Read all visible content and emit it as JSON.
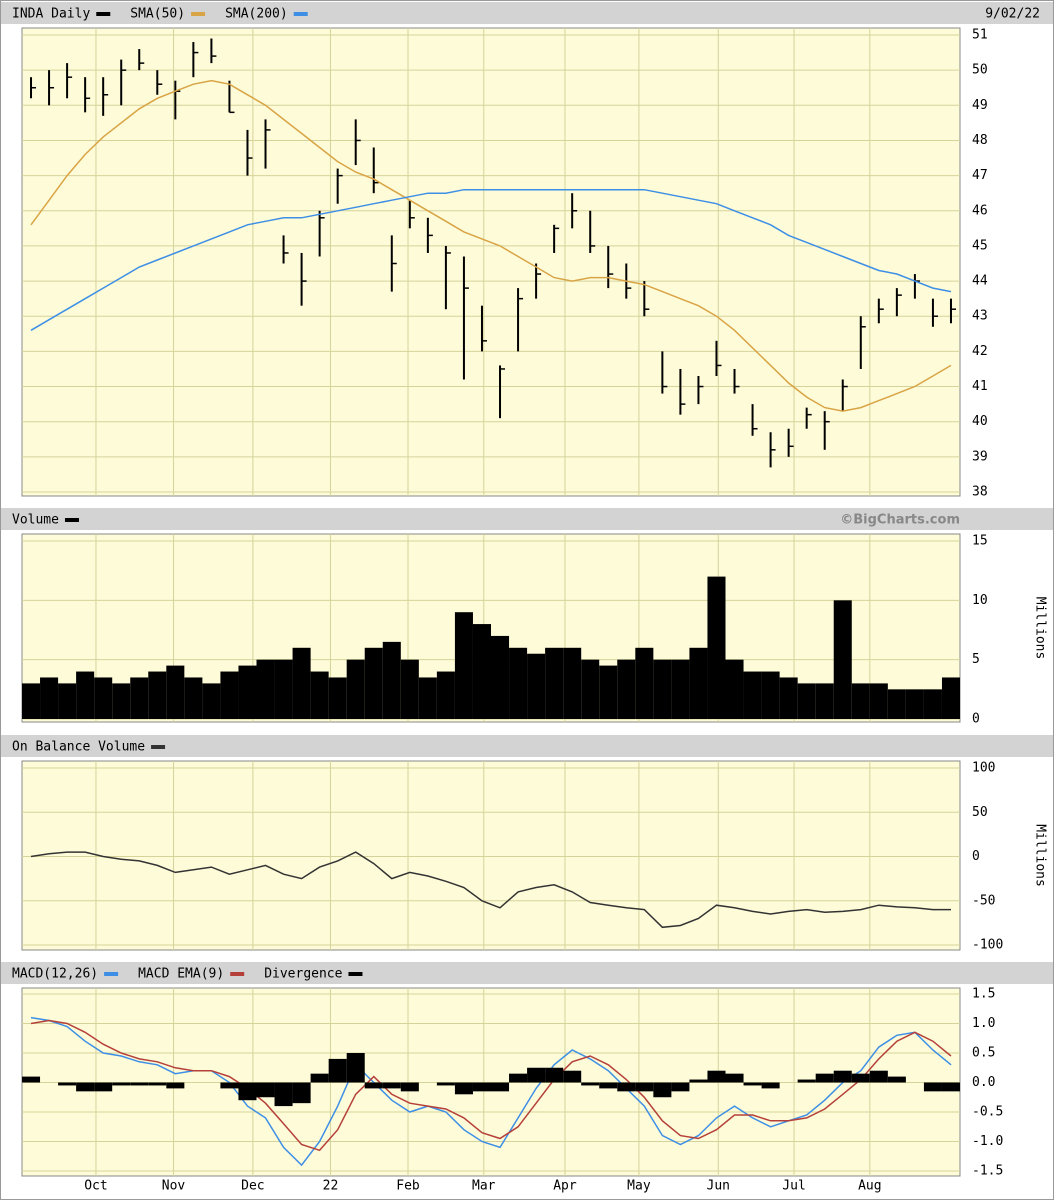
{
  "chart_data": [
    {
      "type": "ohlc",
      "date_label": "9/02/22",
      "ylim": [
        38,
        51
      ],
      "yticks": [
        38,
        39,
        40,
        41,
        42,
        43,
        44,
        45,
        46,
        47,
        48,
        49,
        50,
        51
      ],
      "grid": true,
      "series": [
        {
          "name": "INDA Daily",
          "color": "#000000",
          "high": [
            49.8,
            50,
            50.2,
            49.8,
            49.8,
            50.3,
            50.6,
            50,
            49.7,
            50.8,
            50.9,
            49.7,
            48.3,
            48.6,
            45.3,
            44.8,
            46,
            47.2,
            48.6,
            47.8,
            45.3,
            46.3,
            45.8,
            45,
            44.7,
            43.3,
            41.6,
            43.8,
            44.5,
            45.6,
            46.5,
            46,
            45,
            44.5,
            44,
            42,
            41.5,
            41.3,
            42.3,
            41.5,
            40.5,
            39.7,
            39.8,
            40.4,
            40.3,
            41.2,
            43,
            43.5,
            43.8,
            44.2,
            43.5,
            43.5
          ],
          "low": [
            49.2,
            49,
            49.2,
            48.8,
            48.7,
            49,
            50,
            49.3,
            48.6,
            49.8,
            50.2,
            48.8,
            47,
            47.2,
            44.5,
            43.3,
            44.7,
            46.2,
            47.3,
            46.5,
            43.7,
            45.5,
            44.8,
            43.2,
            41.2,
            42,
            40.1,
            42,
            43.5,
            44.8,
            45.5,
            44.8,
            43.8,
            43.5,
            43,
            40.8,
            40.2,
            40.5,
            41.3,
            40.8,
            39.6,
            38.7,
            39,
            39.8,
            39.2,
            40.3,
            41.5,
            42.8,
            43,
            43.5,
            42.7,
            42.8
          ],
          "close": [
            49.5,
            49.5,
            49.8,
            49.2,
            49.3,
            50,
            50.2,
            49.6,
            49.4,
            50.5,
            50.4,
            48.8,
            47.5,
            48.3,
            44.8,
            44,
            45.8,
            47,
            48,
            46.8,
            44.5,
            45.8,
            45.3,
            44.8,
            43.8,
            42.3,
            41.5,
            43.5,
            44.2,
            45.5,
            46,
            45,
            44.2,
            43.8,
            43.2,
            41,
            40.5,
            41,
            41.6,
            41,
            39.8,
            39.2,
            39.3,
            40.2,
            40,
            41,
            42.7,
            43.2,
            43.6,
            44,
            43,
            43.2
          ]
        },
        {
          "name": "SMA(50)",
          "color": "#d9a445",
          "values": [
            45.6,
            46.3,
            47,
            47.6,
            48.1,
            48.5,
            48.9,
            49.2,
            49.4,
            49.6,
            49.7,
            49.6,
            49.3,
            49,
            48.6,
            48.2,
            47.8,
            47.4,
            47.1,
            46.9,
            46.6,
            46.3,
            46,
            45.7,
            45.4,
            45.2,
            45,
            44.7,
            44.4,
            44.1,
            44,
            44.1,
            44.1,
            44,
            43.9,
            43.7,
            43.5,
            43.3,
            43,
            42.6,
            42.1,
            41.6,
            41.1,
            40.7,
            40.4,
            40.3,
            40.4,
            40.6,
            40.8,
            41,
            41.3,
            41.6
          ]
        },
        {
          "name": "SMA(200)",
          "color": "#3d8fe6",
          "values": [
            42.6,
            42.9,
            43.2,
            43.5,
            43.8,
            44.1,
            44.4,
            44.6,
            44.8,
            45,
            45.2,
            45.4,
            45.6,
            45.7,
            45.8,
            45.8,
            45.9,
            46,
            46.1,
            46.2,
            46.3,
            46.4,
            46.5,
            46.5,
            46.6,
            46.6,
            46.6,
            46.6,
            46.6,
            46.6,
            46.6,
            46.6,
            46.6,
            46.6,
            46.6,
            46.5,
            46.4,
            46.3,
            46.2,
            46,
            45.8,
            45.6,
            45.3,
            45.1,
            44.9,
            44.7,
            44.5,
            44.3,
            44.2,
            44,
            43.8,
            43.7
          ]
        }
      ]
    },
    {
      "type": "bar",
      "credit": "©BigCharts.com",
      "y_label": "Millions",
      "ylim": [
        0,
        15
      ],
      "yticks": [
        0,
        5,
        10,
        15
      ],
      "grid": true,
      "series": [
        {
          "name": "Volume",
          "color": "#000000",
          "values": [
            3,
            3.5,
            3,
            4,
            3.5,
            3,
            3.5,
            4,
            4.5,
            3.5,
            3,
            4,
            4.5,
            5,
            5,
            6,
            4,
            3.5,
            5,
            6,
            6.5,
            5,
            3.5,
            4,
            9,
            8,
            7,
            6,
            5.5,
            6,
            6,
            5,
            4.5,
            5,
            6,
            5,
            5,
            6,
            12,
            5,
            4,
            4,
            3.5,
            3,
            3,
            10,
            3,
            3,
            2.5,
            2.5,
            2.5,
            3.5
          ]
        }
      ]
    },
    {
      "type": "line",
      "y_label": "Millions",
      "ylim": [
        -100,
        100
      ],
      "yticks": [
        -100,
        -50,
        0,
        50,
        100
      ],
      "grid": true,
      "series": [
        {
          "name": "On Balance Volume",
          "color": "#333333",
          "values": [
            0,
            3,
            5,
            5,
            0,
            -3,
            -5,
            -10,
            -18,
            -15,
            -12,
            -20,
            -15,
            -10,
            -20,
            -25,
            -12,
            -5,
            5,
            -8,
            -25,
            -18,
            -22,
            -28,
            -35,
            -50,
            -58,
            -40,
            -35,
            -32,
            -40,
            -52,
            -55,
            -58,
            -60,
            -80,
            -78,
            -70,
            -55,
            -58,
            -62,
            -65,
            -62,
            -60,
            -63,
            -62,
            -60,
            -55,
            -57,
            -58,
            -60,
            -60
          ]
        }
      ]
    },
    {
      "type": "line",
      "ylim": [
        -1.5,
        1.5
      ],
      "grid": true,
      "yticks": [
        -1.5,
        {
          "value": -1,
          "label": "-1.0"
        },
        -0.5,
        {
          "value": 0,
          "label": "0.0"
        },
        0.5,
        {
          "value": 1,
          "label": "1.0"
        },
        1.5
      ],
      "xlim": [
        0,
        52
      ],
      "xticks": [
        {
          "value": 4.1,
          "label": "Oct"
        },
        {
          "value": 8.4,
          "label": "Nov"
        },
        {
          "value": 12.8,
          "label": "Dec"
        },
        {
          "value": 17.1,
          "label": "22"
        },
        {
          "value": 21.4,
          "label": "Feb"
        },
        {
          "value": 25.6,
          "label": "Mar"
        },
        {
          "value": 30.1,
          "label": "Apr"
        },
        {
          "value": 34.2,
          "label": "May"
        },
        {
          "value": 38.6,
          "label": "Jun"
        },
        {
          "value": 42.8,
          "label": "Jul"
        },
        {
          "value": 47,
          "label": "Aug"
        }
      ],
      "series": [
        {
          "name": "MACD(12,26)",
          "color": "#3d8fe6",
          "values": [
            1.1,
            1.05,
            0.95,
            0.7,
            0.5,
            0.45,
            0.35,
            0.3,
            0.15,
            0.2,
            0.2,
            0,
            -0.4,
            -0.6,
            -1.1,
            -1.4,
            -1,
            -0.4,
            0.3,
            0,
            -0.3,
            -0.5,
            -0.4,
            -0.5,
            -0.8,
            -1,
            -1.1,
            -0.6,
            -0.1,
            0.3,
            0.55,
            0.4,
            0.2,
            -0.1,
            -0.4,
            -0.9,
            -1.05,
            -0.9,
            -0.6,
            -0.4,
            -0.6,
            -0.75,
            -0.65,
            -0.55,
            -0.3,
            0,
            0.2,
            0.6,
            0.8,
            0.85,
            0.55,
            0.3
          ]
        },
        {
          "name": "MACD EMA(9)",
          "color": "#b5403a",
          "values": [
            1,
            1.05,
            1,
            0.85,
            0.65,
            0.5,
            0.4,
            0.35,
            0.25,
            0.2,
            0.2,
            0.1,
            -0.1,
            -0.35,
            -0.7,
            -1.05,
            -1.15,
            -0.8,
            -0.2,
            0.1,
            -0.2,
            -0.35,
            -0.4,
            -0.45,
            -0.6,
            -0.85,
            -0.95,
            -0.75,
            -0.35,
            0.05,
            0.35,
            0.45,
            0.3,
            0.05,
            -0.25,
            -0.65,
            -0.9,
            -0.95,
            -0.8,
            -0.55,
            -0.55,
            -0.65,
            -0.65,
            -0.6,
            -0.45,
            -0.2,
            0.05,
            0.4,
            0.7,
            0.85,
            0.7,
            0.45
          ]
        },
        {
          "name": "Divergence",
          "color": "#000000",
          "type": "bar",
          "values": [
            0.1,
            0,
            -0.05,
            -0.15,
            -0.15,
            -0.05,
            -0.05,
            -0.05,
            -0.1,
            0,
            0,
            -0.1,
            -0.3,
            -0.25,
            -0.4,
            -0.35,
            0.15,
            0.4,
            0.5,
            -0.1,
            -0.1,
            -0.15,
            0,
            -0.05,
            -0.2,
            -0.15,
            -0.15,
            0.15,
            0.25,
            0.25,
            0.2,
            -0.05,
            -0.1,
            -0.15,
            -0.15,
            -0.25,
            -0.15,
            0.05,
            0.2,
            0.15,
            -0.05,
            -0.1,
            0,
            0.05,
            0.15,
            0.2,
            0.15,
            0.2,
            0.1,
            0,
            -0.15,
            -0.15
          ]
        }
      ]
    }
  ]
}
